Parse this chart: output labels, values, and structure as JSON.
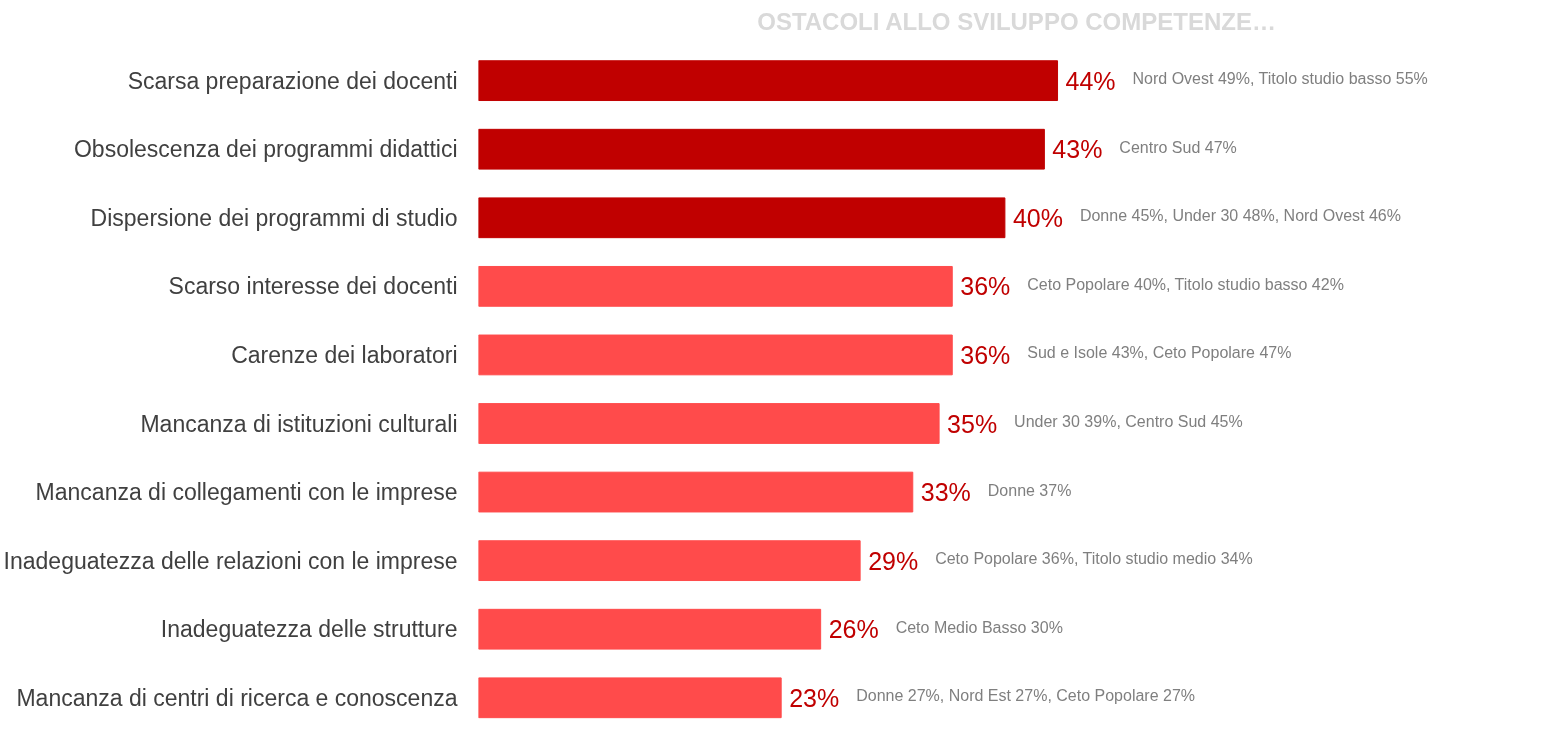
{
  "chart_data": {
    "type": "bar",
    "orientation": "horizontal",
    "title": "OSTACOLI ALLO SVILUPPO COMPETENZE…",
    "categories": [
      "Scarsa preparazione dei docenti",
      "Obsolescenza dei programmi didattici",
      "Dispersione dei programmi di studio",
      "Scarso interesse dei docenti",
      "Carenze dei laboratori",
      "Mancanza di istituzioni culturali",
      "Mancanza di collegamenti con le imprese",
      "Inadeguatezza delle relazioni con le imprese",
      "Inadeguatezza delle strutture",
      "Mancanza di centri di ricerca e conoscenza"
    ],
    "values": [
      44,
      43,
      40,
      36,
      36,
      35,
      33,
      29,
      26,
      23
    ],
    "value_labels": [
      "44%",
      "43%",
      "40%",
      "36%",
      "36%",
      "35%",
      "33%",
      "29%",
      "26%",
      "23%"
    ],
    "colors": [
      "#c00000",
      "#c00000",
      "#c00000",
      "#ff4b4b",
      "#ff4b4b",
      "#ff4b4b",
      "#ff4b4b",
      "#ff4b4b",
      "#ff4b4b",
      "#ff4b4b"
    ],
    "annotations": [
      "Nord Ovest 49%, Titolo studio basso 55%",
      "Centro Sud 47%",
      "Donne 45%, Under 30 48%, Nord Ovest 46%",
      "Ceto Popolare 40%, Titolo studio basso 42%",
      "Sud e Isole 43%, Ceto Popolare 47%",
      "Under 30 39%, Centro Sud 45%",
      "Donne 37%",
      "Ceto Popolare 36%, Titolo studio medio 34%",
      "Ceto Medio Basso 30%",
      "Donne 27%, Nord Est 27%, Ceto Popolare 27%"
    ]
  }
}
